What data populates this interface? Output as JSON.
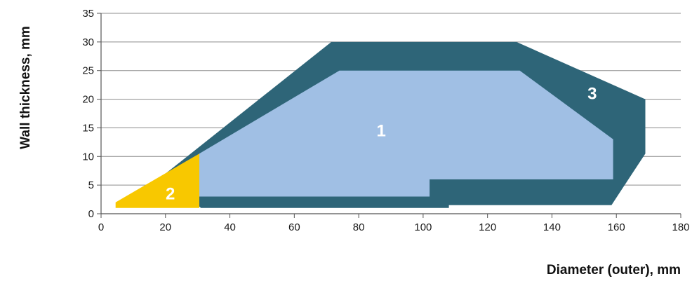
{
  "chart_data": {
    "type": "area",
    "xlabel": "Diameter (outer), mm",
    "ylabel": "Wall thickness, mm",
    "xlim": [
      0,
      180
    ],
    "ylim": [
      0,
      35
    ],
    "x_ticks": [
      0,
      20,
      40,
      60,
      80,
      100,
      120,
      140,
      160,
      180
    ],
    "y_ticks": [
      0,
      5,
      10,
      15,
      20,
      25,
      30,
      35
    ],
    "grid": "horizontal",
    "colors": {
      "region_1": "#a0bfe4",
      "region_2": "#f8c800",
      "region_3": "#2e6578",
      "grid": "#8c8c8c",
      "axis": "#555555"
    },
    "regions": [
      {
        "name": "3",
        "label": "3",
        "label_at": [
          152.5,
          21
        ],
        "polygon": [
          [
            20,
            7
          ],
          [
            71.5,
            30
          ],
          [
            129,
            30
          ],
          [
            169,
            20
          ],
          [
            169,
            10.5
          ],
          [
            158.5,
            1.5
          ],
          [
            108,
            1.5
          ],
          [
            108,
            1
          ],
          [
            31,
            1
          ],
          [
            20,
            6.5
          ]
        ]
      },
      {
        "name": "1",
        "label": "1",
        "label_at": [
          87,
          14.5
        ],
        "polygon": [
          [
            30.5,
            10.5
          ],
          [
            74,
            25
          ],
          [
            130,
            25
          ],
          [
            159,
            13
          ],
          [
            159,
            6
          ],
          [
            102,
            6
          ],
          [
            102,
            3
          ],
          [
            30.5,
            3
          ]
        ]
      },
      {
        "name": "2",
        "label": "2",
        "label_at": [
          21.5,
          3.5
        ],
        "polygon": [
          [
            4.5,
            2
          ],
          [
            30.5,
            10.5
          ],
          [
            30.5,
            1
          ],
          [
            4.5,
            1
          ]
        ]
      }
    ]
  }
}
